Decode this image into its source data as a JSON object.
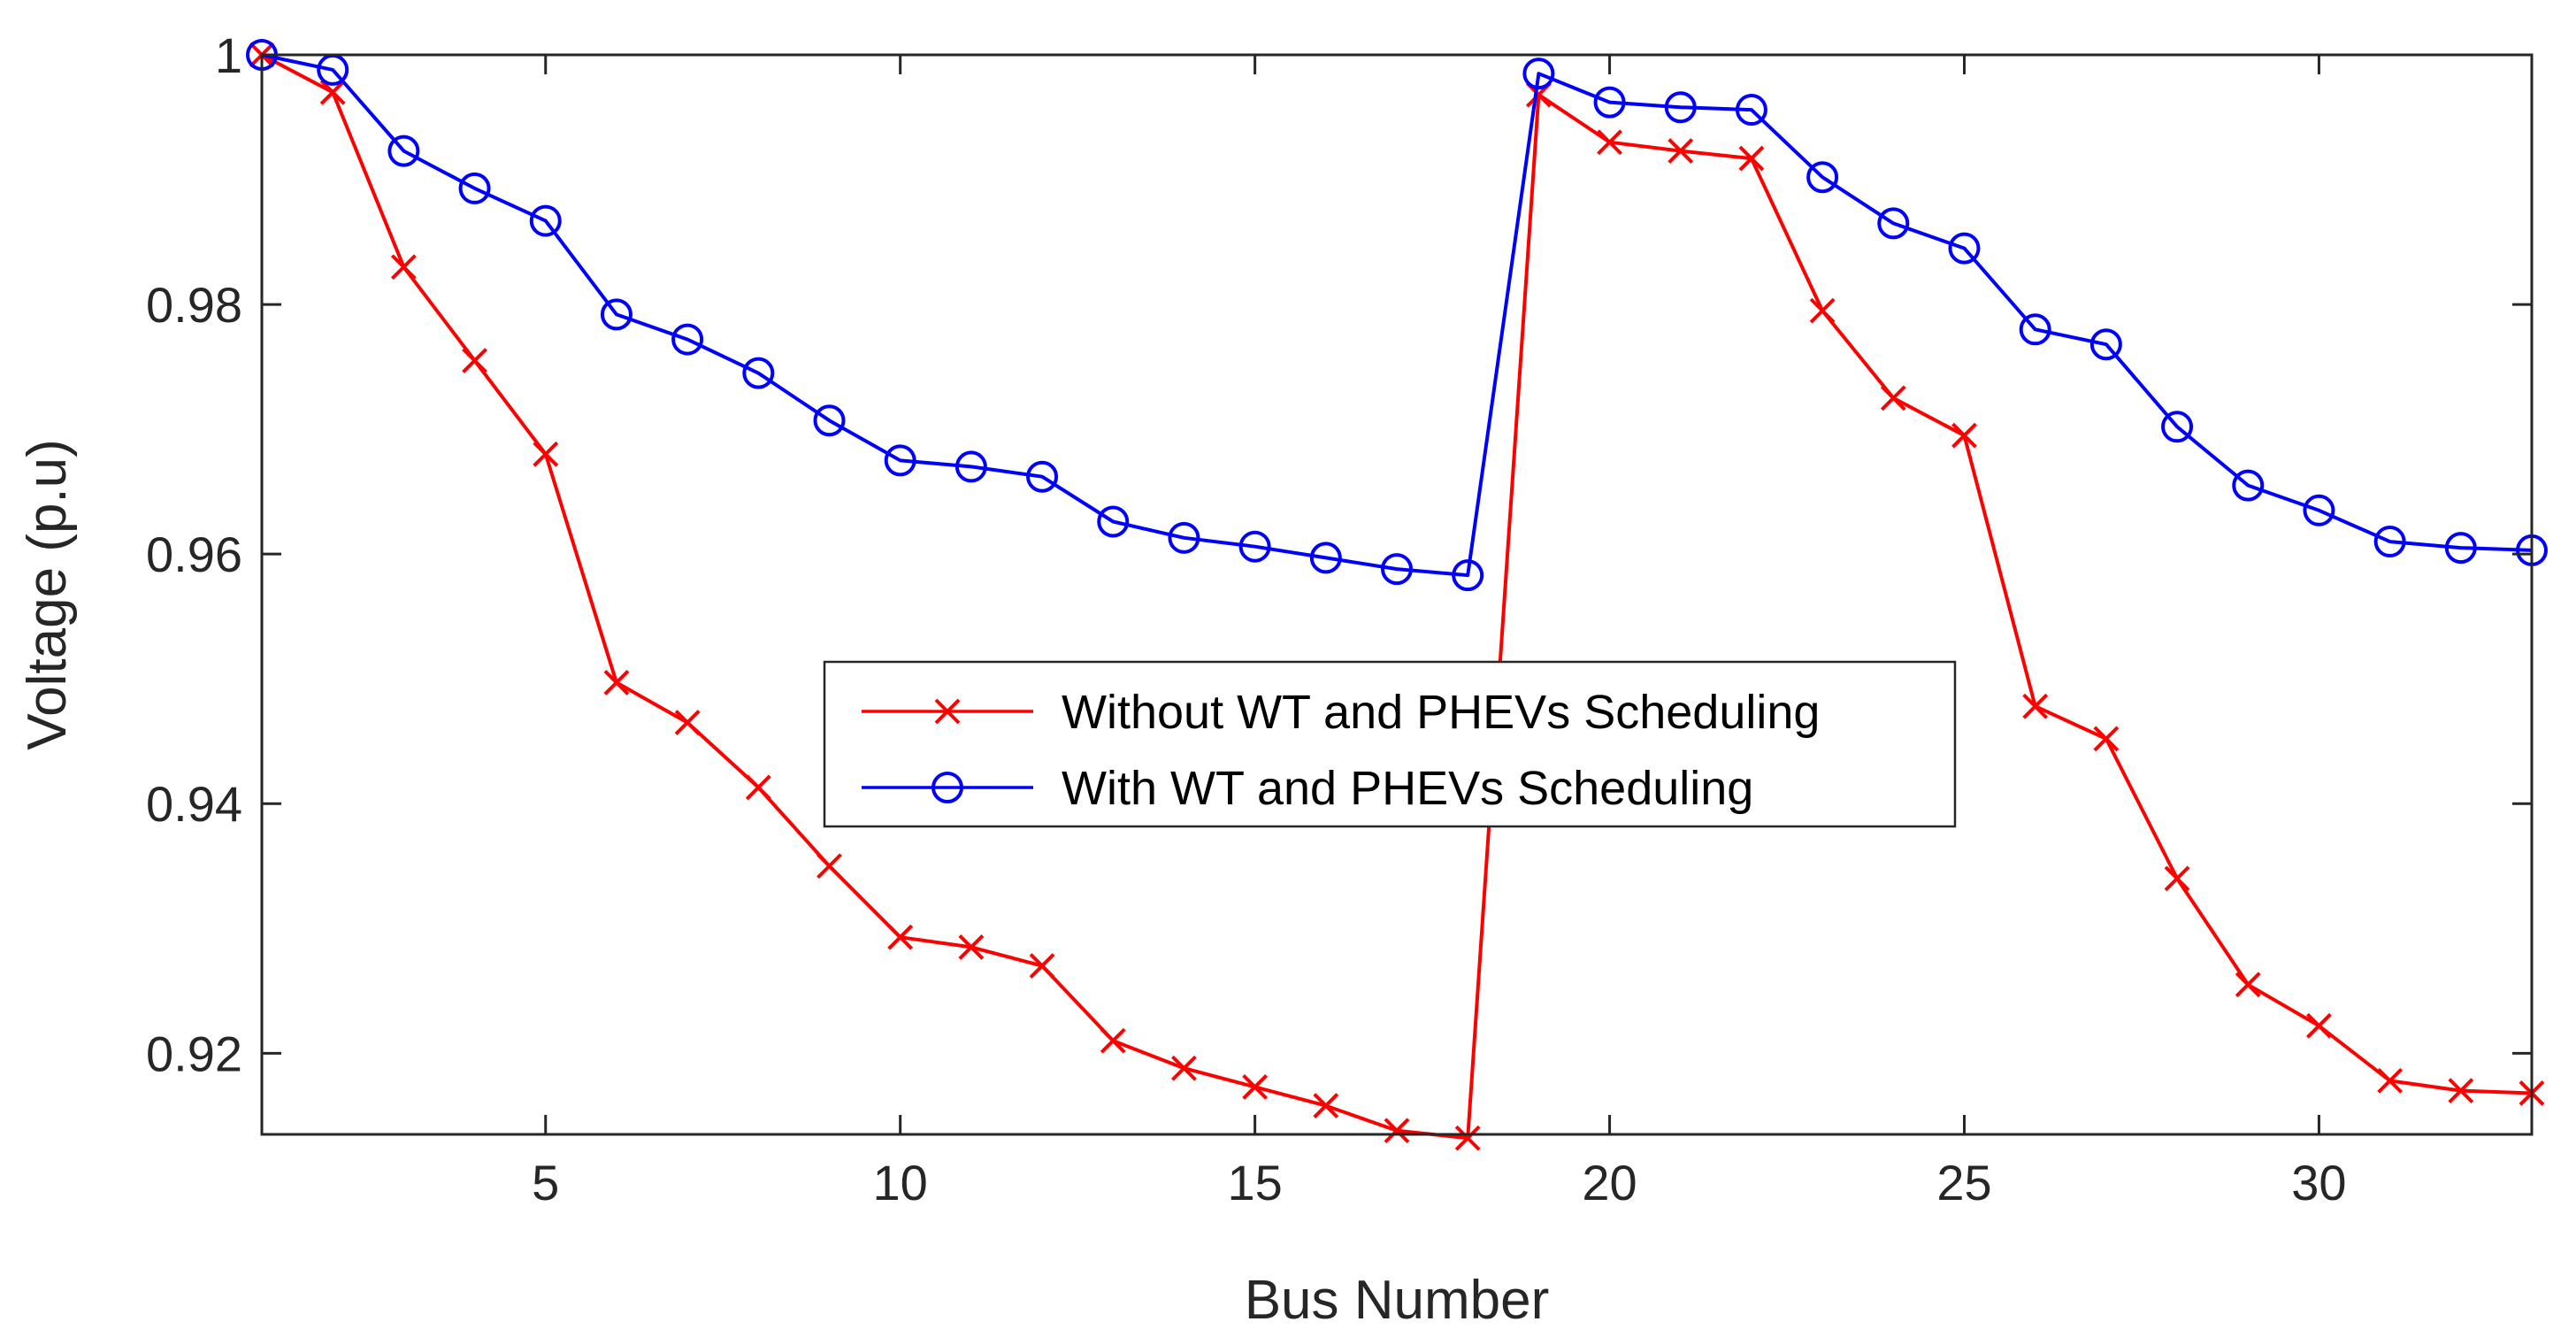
{
  "chart_data": {
    "type": "line",
    "title": "",
    "xlabel": "Bus Number",
    "ylabel": "Voltage (p.u)",
    "xlim": [
      1,
      33
    ],
    "ylim": [
      0.9135,
      1.0
    ],
    "xticks": [
      5,
      10,
      15,
      20,
      25,
      30
    ],
    "yticks": [
      0.92,
      0.94,
      0.96,
      0.98,
      1.0
    ],
    "ytick_labels": [
      "0.92",
      "0.94",
      "0.96",
      "0.98",
      "1"
    ],
    "grid": false,
    "legend_position": "center",
    "x": [
      1,
      2,
      3,
      4,
      5,
      6,
      7,
      8,
      9,
      10,
      11,
      12,
      13,
      14,
      15,
      16,
      17,
      18,
      19,
      20,
      21,
      22,
      23,
      24,
      25,
      26,
      27,
      28,
      29,
      30,
      31,
      32,
      33
    ],
    "series": [
      {
        "name": "Without WT and PHEVs Scheduling",
        "color": "#ff0000",
        "marker": "x",
        "values": [
          1.0,
          0.997,
          0.983,
          0.9755,
          0.968,
          0.9497,
          0.9465,
          0.9413,
          0.935,
          0.9293,
          0.9285,
          0.927,
          0.921,
          0.9188,
          0.9173,
          0.9158,
          0.9138,
          0.9132,
          0.9968,
          0.993,
          0.9923,
          0.9917,
          0.9795,
          0.9725,
          0.9695,
          0.9478,
          0.9452,
          0.934,
          0.9255,
          0.9222,
          0.9178,
          0.917,
          0.9168
        ]
      },
      {
        "name": "With WT and PHEVs Scheduling",
        "color": "#0000ff",
        "marker": "o",
        "values": [
          1.0,
          0.9988,
          0.9923,
          0.9893,
          0.9867,
          0.9792,
          0.9772,
          0.9745,
          0.9707,
          0.9675,
          0.967,
          0.9662,
          0.9626,
          0.9613,
          0.9606,
          0.9597,
          0.9588,
          0.9583,
          0.9985,
          0.9962,
          0.9958,
          0.9956,
          0.9902,
          0.9865,
          0.9845,
          0.978,
          0.9768,
          0.9702,
          0.9655,
          0.9635,
          0.961,
          0.9605,
          0.9603
        ]
      }
    ]
  }
}
